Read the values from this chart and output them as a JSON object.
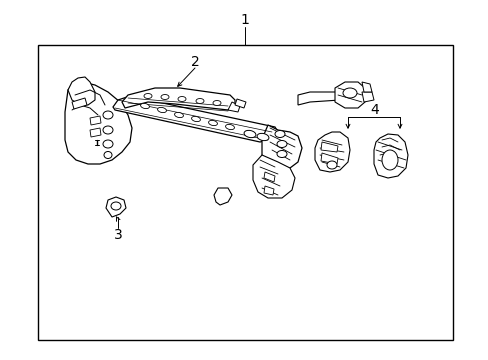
{
  "background_color": "#ffffff",
  "line_color": "#000000",
  "box_border_color": "#000000",
  "label_1": "1",
  "label_2": "2",
  "label_3": "3",
  "label_4": "4",
  "fig_width": 4.89,
  "fig_height": 3.6,
  "dpi": 100
}
